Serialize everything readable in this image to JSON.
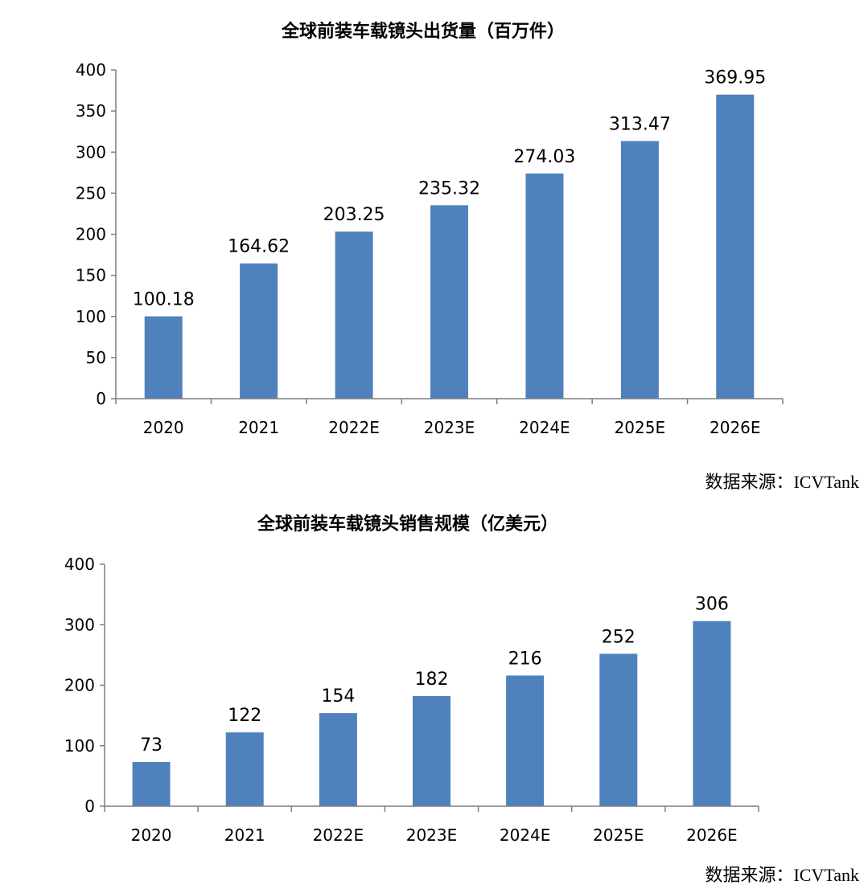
{
  "chart_data": [
    {
      "type": "bar",
      "title": "全球前装车载镜头出货量（百万件）",
      "categories": [
        "2020",
        "2021",
        "2022E",
        "2023E",
        "2024E",
        "2025E",
        "2026E"
      ],
      "values": [
        100.18,
        164.62,
        203.25,
        235.32,
        274.03,
        313.47,
        369.95
      ],
      "value_labels": [
        "100.18",
        "164.62",
        "203.25",
        "235.32",
        "274.03",
        "313.47",
        "369.95"
      ],
      "ylim": [
        0,
        400
      ],
      "yticks": [
        0,
        50,
        100,
        150,
        200,
        250,
        300,
        350,
        400
      ],
      "color": "#4f81bd",
      "grid": false,
      "source": "数据来源：ICVTank"
    },
    {
      "type": "bar",
      "title": "全球前装车载镜头销售规模（亿美元）",
      "categories": [
        "2020",
        "2021",
        "2022E",
        "2023E",
        "2024E",
        "2025E",
        "2026E"
      ],
      "values": [
        73,
        122,
        154,
        182,
        216,
        252,
        306
      ],
      "value_labels": [
        "73",
        "122",
        "154",
        "182",
        "216",
        "252",
        "306"
      ],
      "ylim": [
        0,
        400
      ],
      "yticks": [
        0,
        100,
        200,
        300,
        400
      ],
      "color": "#4f81bd",
      "grid": false,
      "source": "数据来源：ICVTank"
    }
  ]
}
